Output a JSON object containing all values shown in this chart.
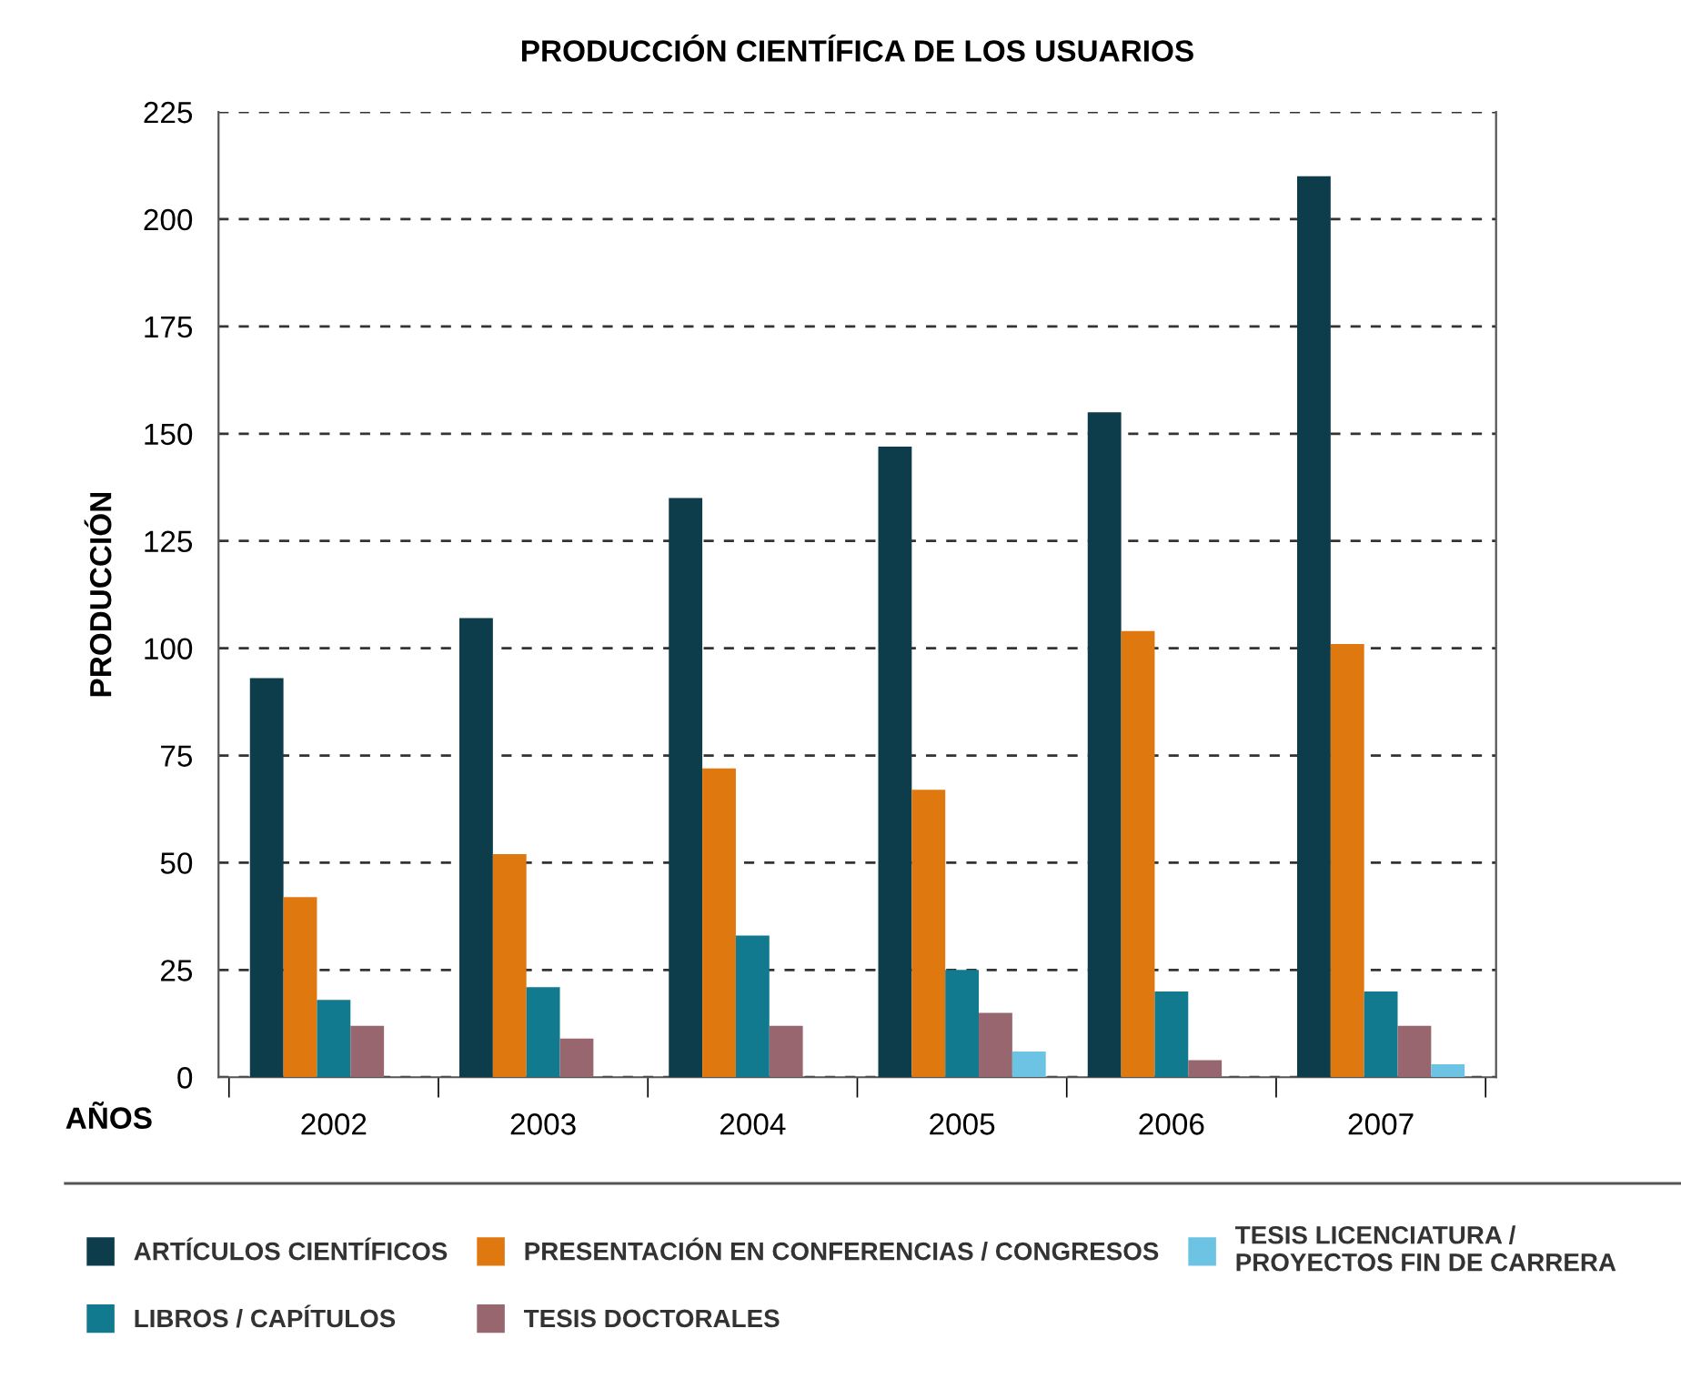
{
  "chart_data": {
    "type": "bar",
    "title": "PRODUCCIÓN CIENTÍFICA DE LOS USUARIOS",
    "xlabel": "AÑOS",
    "ylabel": "PRODUCCIÓN",
    "categories": [
      "2002",
      "2003",
      "2004",
      "2005",
      "2006",
      "2007"
    ],
    "series": [
      {
        "name": "ARTÍCULOS CIENTÍFICOS",
        "color": "#0d3d4b",
        "values": [
          93,
          107,
          135,
          147,
          155,
          210
        ]
      },
      {
        "name": "PRESENTACIÓN EN CONFERENCIAS / CONGRESOS",
        "color": "#e07810",
        "values": [
          42,
          52,
          72,
          67,
          104,
          101
        ]
      },
      {
        "name": "LIBROS / CAPÍTULOS",
        "color": "#127a8e",
        "values": [
          18,
          21,
          33,
          25,
          20,
          20
        ]
      },
      {
        "name": "TESIS DOCTORALES",
        "color": "#98666f",
        "values": [
          12,
          9,
          12,
          15,
          4,
          12
        ]
      },
      {
        "name": "TESIS LICENCIATURA /\nPROYECTOS FIN DE CARRERA",
        "color": "#6cc3e3",
        "values": [
          0,
          0,
          0,
          6,
          0,
          3
        ]
      }
    ],
    "ylim": [
      0,
      225
    ],
    "yticks": [
      0,
      25,
      50,
      75,
      100,
      125,
      150,
      175,
      200,
      225
    ],
    "grid": "y",
    "legend": "bottom"
  }
}
